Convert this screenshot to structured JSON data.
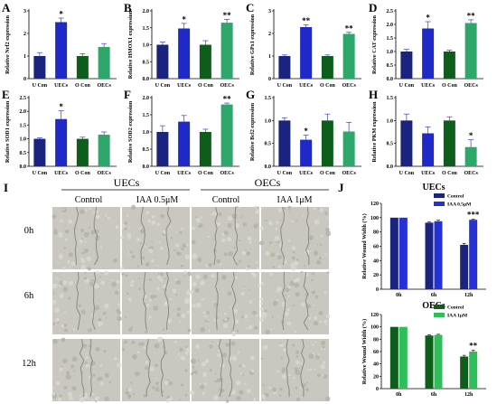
{
  "colors": {
    "u_con": "#1a237e",
    "uecs": "#1f29c8",
    "o_con": "#0c5e1a",
    "oecs": "#2da86a",
    "wound_control_u": "#1a237e",
    "wound_iaa_u": "#2531d6",
    "wound_control_o": "#0c5e1a",
    "wound_iaa_o": "#2fbf5a",
    "error": "#4a57d8"
  },
  "chart_data": [
    {
      "type": "bar",
      "panel": "A",
      "ylabel": "Relative Nrf2 expression",
      "categories": [
        "U Con",
        "UECs",
        "O Con",
        "OECs"
      ],
      "values": [
        1.0,
        2.5,
        1.0,
        1.4
      ],
      "errors": [
        0.15,
        0.18,
        0.1,
        0.15
      ],
      "sig": [
        "",
        "*",
        "",
        ""
      ],
      "ylim": [
        0,
        3
      ],
      "yticks": [
        0,
        1,
        2,
        3
      ]
    },
    {
      "type": "bar",
      "panel": "B",
      "ylabel": "Relative HMOX1 expression",
      "categories": [
        "U Con",
        "UECs",
        "O Con",
        "OECs"
      ],
      "values": [
        1.0,
        1.48,
        1.0,
        1.65
      ],
      "errors": [
        0.08,
        0.15,
        0.12,
        0.1
      ],
      "sig": [
        "",
        "*",
        "",
        "**"
      ],
      "ylim": [
        0,
        2
      ],
      "yticks": [
        0.0,
        0.5,
        1.0,
        1.5,
        2.0
      ]
    },
    {
      "type": "bar",
      "panel": "C",
      "ylabel": "Relative GPx1 expression",
      "categories": [
        "U Con",
        "UECs",
        "O Con",
        "OECs"
      ],
      "values": [
        1.0,
        2.28,
        1.0,
        1.98
      ],
      "errors": [
        0.05,
        0.1,
        0.05,
        0.07
      ],
      "sig": [
        "",
        "**",
        "",
        "**"
      ],
      "ylim": [
        0,
        3
      ],
      "yticks": [
        0,
        1,
        2,
        3
      ]
    },
    {
      "type": "bar",
      "panel": "D",
      "ylabel": "Relative CAT expression",
      "categories": [
        "U Con",
        "UECs",
        "O Con",
        "OECs"
      ],
      "values": [
        1.0,
        1.85,
        1.0,
        2.05
      ],
      "errors": [
        0.08,
        0.25,
        0.05,
        0.12
      ],
      "sig": [
        "",
        "*",
        "",
        "**"
      ],
      "ylim": [
        0,
        2.5
      ],
      "yticks": [
        0.0,
        0.5,
        1.0,
        1.5,
        2.0,
        2.5
      ]
    },
    {
      "type": "bar",
      "panel": "E",
      "ylabel": "Relative SOD1 expression",
      "categories": [
        "U Con",
        "UECs",
        "O Con",
        "OECs"
      ],
      "values": [
        1.0,
        1.72,
        1.0,
        1.15
      ],
      "errors": [
        0.04,
        0.3,
        0.06,
        0.1
      ],
      "sig": [
        "",
        "*",
        "",
        ""
      ],
      "ylim": [
        0,
        2.5
      ],
      "yticks": [
        0.0,
        0.5,
        1.0,
        1.5,
        2.0,
        2.5
      ]
    },
    {
      "type": "bar",
      "panel": "F",
      "ylabel": "Relative SOD2 expression",
      "categories": [
        "U Con",
        "UECs",
        "O Con",
        "OECs"
      ],
      "values": [
        1.0,
        1.3,
        1.0,
        1.8
      ],
      "errors": [
        0.18,
        0.18,
        0.08,
        0.04
      ],
      "sig": [
        "",
        "",
        "",
        "**"
      ],
      "ylim": [
        0,
        2
      ],
      "yticks": [
        0.0,
        0.5,
        1.0,
        1.5,
        2.0
      ]
    },
    {
      "type": "bar",
      "panel": "G",
      "ylabel": "Relative Bcl2 expression",
      "categories": [
        "U Con",
        "UECs",
        "O Con",
        "OECs"
      ],
      "values": [
        1.0,
        0.58,
        1.0,
        0.76
      ],
      "errors": [
        0.06,
        0.1,
        0.14,
        0.2
      ],
      "sig": [
        "",
        "*",
        "",
        ""
      ],
      "ylim": [
        0,
        1.5
      ],
      "yticks": [
        0.0,
        0.5,
        1.0,
        1.5
      ]
    },
    {
      "type": "bar",
      "panel": "H",
      "ylabel": "Relative PKM expression",
      "categories": [
        "U Con",
        "UECs",
        "O Con",
        "OECs"
      ],
      "values": [
        1.0,
        0.72,
        1.0,
        0.42
      ],
      "errors": [
        0.14,
        0.14,
        0.08,
        0.16
      ],
      "sig": [
        "",
        "",
        "",
        "*"
      ],
      "ylim": [
        0,
        1.5
      ],
      "yticks": [
        0.0,
        0.5,
        1.0,
        1.5
      ]
    },
    {
      "type": "bar",
      "panel": "J-UECs",
      "title": "UECs",
      "ylabel": "Relative Wound Width (%)",
      "categories": [
        "0h",
        "6h",
        "12h"
      ],
      "series": [
        {
          "name": "Control",
          "values": [
            100,
            93,
            62
          ],
          "errors": [
            0,
            1,
            2
          ]
        },
        {
          "name": "IAA 0.5μM",
          "values": [
            100,
            95,
            97
          ],
          "errors": [
            0,
            1.5,
            1
          ]
        }
      ],
      "sig": [
        "",
        "",
        "***"
      ],
      "ylim": [
        0,
        120
      ],
      "yticks": [
        0,
        20,
        40,
        60,
        80,
        100,
        120
      ],
      "legend": "top-right"
    },
    {
      "type": "bar",
      "panel": "J-OECs",
      "title": "OECs",
      "ylabel": "Relative Wound Width (%)",
      "categories": [
        "0h",
        "6h",
        "12h"
      ],
      "series": [
        {
          "name": "Control",
          "values": [
            100,
            86,
            52
          ],
          "errors": [
            0,
            1,
            2
          ]
        },
        {
          "name": "IAA 1μM",
          "values": [
            100,
            87,
            60
          ],
          "errors": [
            0,
            1,
            2
          ]
        }
      ],
      "sig": [
        "",
        "",
        "**"
      ],
      "ylim": [
        0,
        120
      ],
      "yticks": [
        0,
        20,
        40,
        60,
        80,
        100,
        120
      ],
      "legend": "top-right"
    }
  ],
  "panel_i": {
    "label": "I",
    "groups": [
      "UECs",
      "OECs"
    ],
    "columns": [
      "Control",
      "IAA 0.5μM",
      "Control",
      "IAA 1μM"
    ],
    "rows": [
      "0h",
      "6h",
      "12h"
    ]
  },
  "panel_j": {
    "label": "J"
  }
}
